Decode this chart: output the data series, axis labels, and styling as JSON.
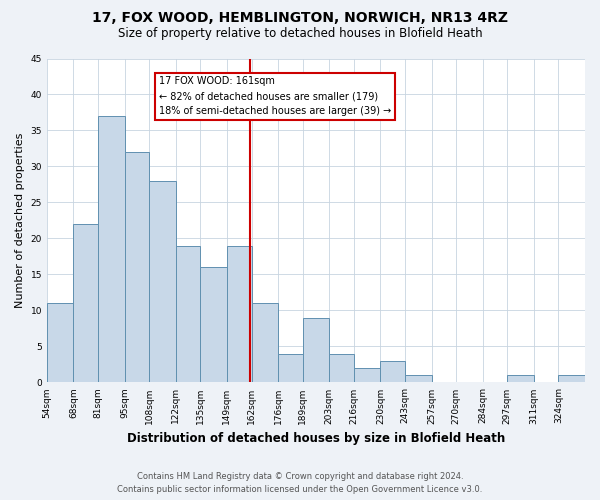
{
  "title": "17, FOX WOOD, HEMBLINGTON, NORWICH, NR13 4RZ",
  "subtitle": "Size of property relative to detached houses in Blofield Heath",
  "xlabel": "Distribution of detached houses by size in Blofield Heath",
  "ylabel": "Number of detached properties",
  "bin_labels": [
    "54sqm",
    "68sqm",
    "81sqm",
    "95sqm",
    "108sqm",
    "122sqm",
    "135sqm",
    "149sqm",
    "162sqm",
    "176sqm",
    "189sqm",
    "203sqm",
    "216sqm",
    "230sqm",
    "243sqm",
    "257sqm",
    "270sqm",
    "284sqm",
    "297sqm",
    "311sqm",
    "324sqm"
  ],
  "bin_edges": [
    54,
    68,
    81,
    95,
    108,
    122,
    135,
    149,
    162,
    176,
    189,
    203,
    216,
    230,
    243,
    257,
    270,
    284,
    297,
    311,
    324,
    338
  ],
  "counts": [
    11,
    22,
    37,
    32,
    28,
    19,
    16,
    19,
    11,
    4,
    9,
    4,
    2,
    3,
    1,
    0,
    0,
    0,
    1,
    0,
    1
  ],
  "bar_color": "#c8d8e8",
  "bar_edge_color": "#6090b0",
  "property_size": 161,
  "vline_color": "#cc0000",
  "annotation_text_line1": "17 FOX WOOD: 161sqm",
  "annotation_text_line2": "← 82% of detached houses are smaller (179)",
  "annotation_text_line3": "18% of semi-detached houses are larger (39) →",
  "annotation_box_color": "#cc0000",
  "ylim": [
    0,
    45
  ],
  "yticks": [
    0,
    5,
    10,
    15,
    20,
    25,
    30,
    35,
    40,
    45
  ],
  "footer_line1": "Contains HM Land Registry data © Crown copyright and database right 2024.",
  "footer_line2": "Contains public sector information licensed under the Open Government Licence v3.0.",
  "bg_color": "#eef2f7",
  "plot_bg_color": "#ffffff"
}
